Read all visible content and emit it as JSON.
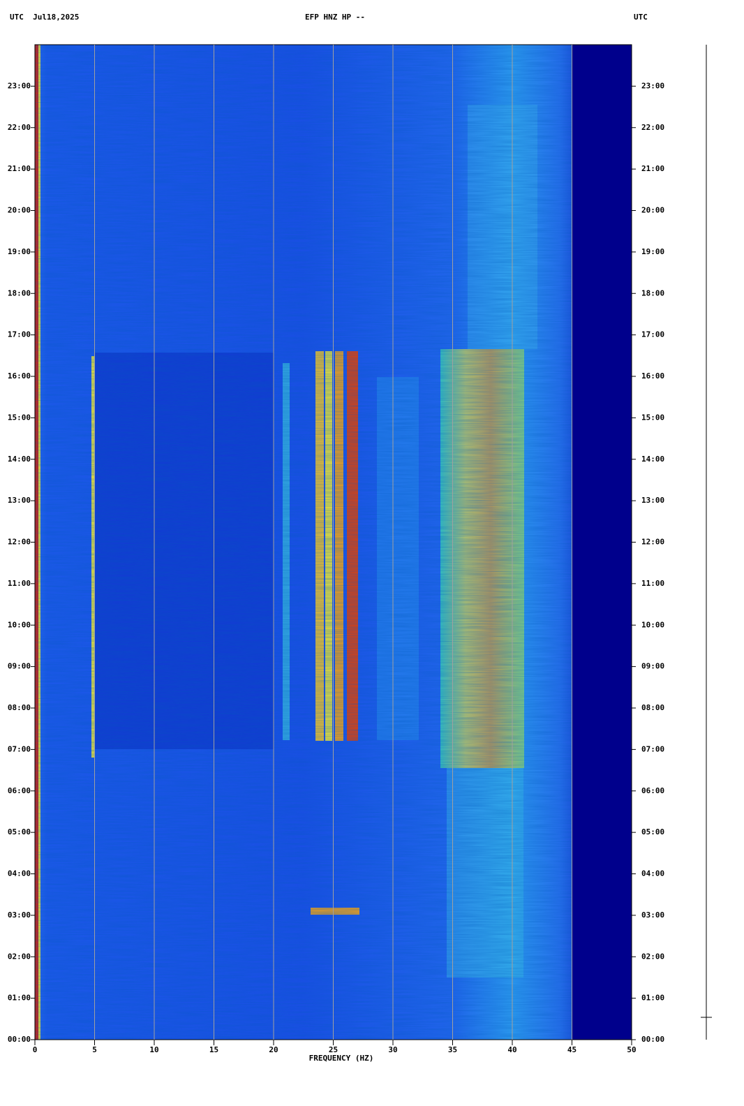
{
  "chart_data": {
    "type": "spectrogram",
    "title": "EFP HNZ HP --",
    "left_header": "UTC  Jul18,2025",
    "right_header": "UTC",
    "x_label": "FREQUENCY (HZ)",
    "xlim": [
      0,
      50
    ],
    "xticks": [
      0,
      5,
      10,
      15,
      20,
      25,
      30,
      35,
      40,
      45,
      50
    ],
    "ylim": [
      0,
      24
    ],
    "yticks": [
      {
        "value": 0,
        "label": "00:00"
      },
      {
        "value": 1,
        "label": "01:00"
      },
      {
        "value": 2,
        "label": "02:00"
      },
      {
        "value": 3,
        "label": "03:00"
      },
      {
        "value": 4,
        "label": "04:00"
      },
      {
        "value": 5,
        "label": "05:00"
      },
      {
        "value": 6,
        "label": "06:00"
      },
      {
        "value": 7,
        "label": "07:00"
      },
      {
        "value": 8,
        "label": "08:00"
      },
      {
        "value": 9,
        "label": "09:00"
      },
      {
        "value": 10,
        "label": "10:00"
      },
      {
        "value": 11,
        "label": "11:00"
      },
      {
        "value": 12,
        "label": "12:00"
      },
      {
        "value": 13,
        "label": "13:00"
      },
      {
        "value": 14,
        "label": "14:00"
      },
      {
        "value": 15,
        "label": "15:00"
      },
      {
        "value": 16,
        "label": "16:00"
      },
      {
        "value": 17,
        "label": "17:00"
      },
      {
        "value": 18,
        "label": "18:00"
      },
      {
        "value": 19,
        "label": "19:00"
      },
      {
        "value": 20,
        "label": "20:00"
      },
      {
        "value": 21,
        "label": "21:00"
      },
      {
        "value": 22,
        "label": "22:00"
      },
      {
        "value": 23,
        "label": "23:00"
      }
    ],
    "grid": true
  }
}
